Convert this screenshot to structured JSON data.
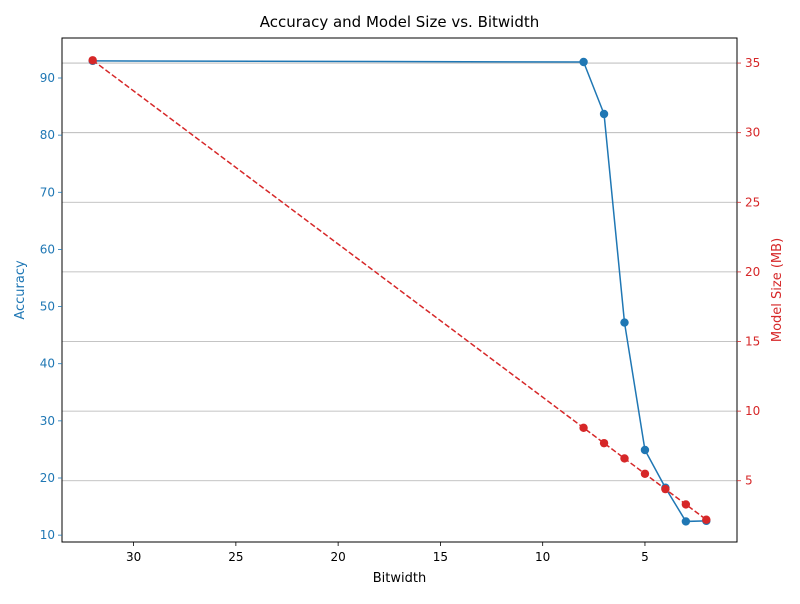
{
  "chart_data": {
    "type": "line",
    "title": "Accuracy and Model Size vs. Bitwidth",
    "xlabel": "Bitwidth",
    "x_inverted": true,
    "xlim": [
      33.5,
      0.5
    ],
    "x_ticks": [
      30,
      25,
      20,
      15,
      10,
      5
    ],
    "x": [
      32,
      8,
      7,
      6,
      5,
      4,
      3,
      2
    ],
    "y_left": {
      "label": "Accuracy",
      "color": "#1f77b4",
      "ylim": [
        8.8,
        97.0
      ],
      "ticks": [
        10,
        20,
        30,
        40,
        50,
        60,
        70,
        80,
        90
      ]
    },
    "y_right": {
      "label": "Model Size (MB)",
      "color": "#d62728",
      "ylim": [
        0.6,
        36.8
      ],
      "ticks": [
        5,
        10,
        15,
        20,
        25,
        30,
        35
      ],
      "grid": true
    },
    "series": [
      {
        "axis": "left",
        "color": "#1f77b4",
        "line_style": "solid",
        "marker": "circle",
        "values": [
          93.0,
          92.8,
          83.7,
          47.2,
          24.9,
          18.3,
          12.4,
          12.5
        ]
      },
      {
        "axis": "right",
        "color": "#d62728",
        "line_style": "dashed",
        "marker": "circle",
        "values": [
          35.2,
          8.8,
          7.7,
          6.6,
          5.5,
          4.4,
          3.3,
          2.2
        ]
      }
    ]
  }
}
